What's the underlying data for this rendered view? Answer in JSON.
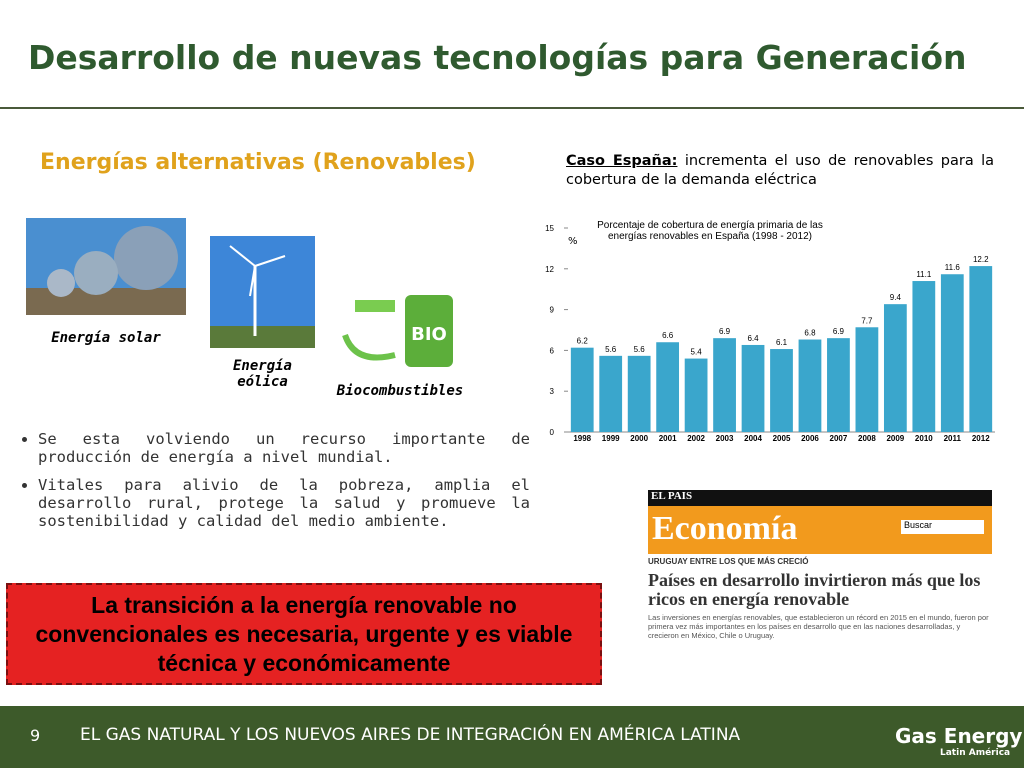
{
  "header": {
    "title": "Desarrollo de nuevas tecnologías para Generación"
  },
  "section": {
    "title": "Energías alternativas (Renovables)",
    "images": [
      {
        "label": "Energía solar"
      },
      {
        "label": "Energía eólica"
      },
      {
        "label": "Biocombustibles"
      }
    ],
    "bullets": [
      "Se esta volviendo un recurso importante de producción de energía a nivel mundial.",
      "Vitales para alivio de la pobreza, amplia el desarrollo rural, protege la salud y promueve la sostenibilidad y calidad del medio ambiente."
    ]
  },
  "case": {
    "lead": "Caso España:",
    "text": " incrementa el uso de renovables para la cobertura de la demanda eléctrica"
  },
  "chart_data": {
    "type": "bar",
    "title": "Porcentaje de cobertura de energía primaria de las energías renovables en España (1998 - 2012)",
    "y_label": "%",
    "color": "#3aa6cc",
    "categories": [
      "1998",
      "1999",
      "2000",
      "2001",
      "2002",
      "2003",
      "2004",
      "2005",
      "2006",
      "2007",
      "2008",
      "2009",
      "2010",
      "2011",
      "2012"
    ],
    "values": [
      6.2,
      5.6,
      5.6,
      6.6,
      5.4,
      6.9,
      6.4,
      6.1,
      6.8,
      6.9,
      7.7,
      9.4,
      11.1,
      11.6,
      12.2
    ],
    "ylim": [
      0,
      15
    ],
    "yticks": [
      0,
      3,
      6,
      9,
      12,
      15
    ]
  },
  "news": {
    "brand": "EL PAIS",
    "section": "Economía",
    "kicker": "URUGUAY ENTRE LOS QUE MÁS CRECIÓ",
    "headline": "Países en desarrollo invirtieron más que los ricos en energía renovable",
    "lede": "Las inversiones en energías renovables, que establecieron un récord en 2015 en el mundo, fueron por primera vez más importantes en los países en desarrollo que en las naciones desarrolladas, y crecieron en México, Chile o Uruguay.",
    "search": "Buscar"
  },
  "callout": "La transición a la energía renovable no convencionales es necesaria, urgente y es viable técnica y económicamente",
  "footer": {
    "page": "9",
    "text": "EL GAS NATURAL Y LOS NUEVOS AIRES DE INTEGRACIÓN EN AMÉRICA LATINA",
    "logo": "Gas Energy",
    "logo_sub": "Latin América"
  }
}
